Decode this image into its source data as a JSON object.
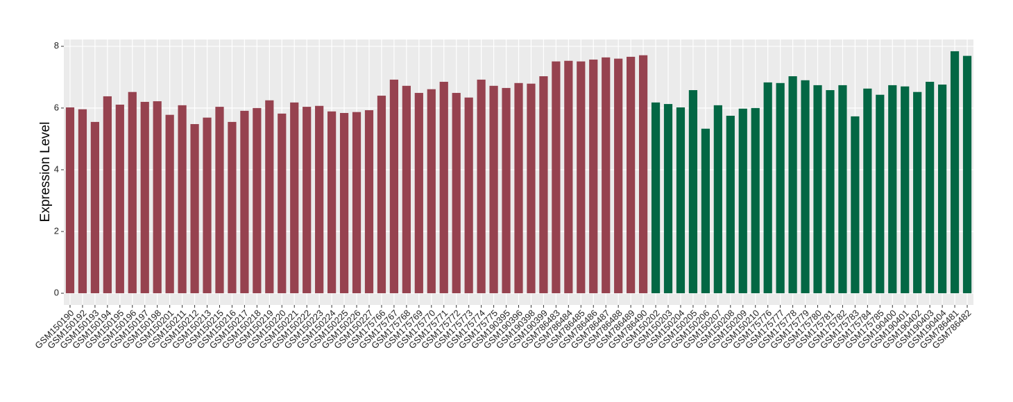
{
  "chart_data": {
    "type": "bar",
    "y_label": "Expression Level",
    "categories": [
      "GSM150190",
      "GSM150192",
      "GSM150193",
      "GSM150194",
      "GSM150195",
      "GSM150196",
      "GSM150197",
      "GSM150198",
      "GSM150201",
      "GSM150211",
      "GSM150212",
      "GSM150213",
      "GSM150215",
      "GSM150216",
      "GSM150217",
      "GSM150218",
      "GSM150219",
      "GSM150220",
      "GSM150221",
      "GSM150222",
      "GSM150223",
      "GSM150224",
      "GSM150225",
      "GSM150226",
      "GSM150227",
      "GSM175766",
      "GSM175767",
      "GSM175768",
      "GSM175769",
      "GSM175770",
      "GSM175771",
      "GSM175772",
      "GSM175773",
      "GSM175774",
      "GSM175775",
      "GSM190395",
      "GSM190396",
      "GSM190398",
      "GSM190399",
      "GSM786483",
      "GSM786484",
      "GSM786485",
      "GSM786486",
      "GSM786487",
      "GSM786488",
      "GSM786489",
      "GSM786490",
      "GSM150202",
      "GSM150203",
      "GSM150204",
      "GSM150205",
      "GSM150206",
      "GSM150207",
      "GSM150208",
      "GSM150209",
      "GSM150210",
      "GSM175776",
      "GSM175777",
      "GSM175778",
      "GSM175779",
      "GSM175780",
      "GSM175781",
      "GSM175782",
      "GSM175783",
      "GSM175784",
      "GSM175785",
      "GSM190400",
      "GSM190401",
      "GSM190402",
      "GSM190403",
      "GSM190404",
      "GSM786481",
      "GSM786482"
    ],
    "values": [
      6.02,
      5.96,
      5.55,
      6.38,
      6.11,
      6.52,
      6.2,
      6.22,
      5.78,
      6.09,
      5.48,
      5.69,
      6.04,
      5.55,
      5.91,
      6.0,
      6.25,
      5.82,
      6.18,
      6.04,
      6.07,
      5.89,
      5.84,
      5.87,
      5.93,
      6.4,
      6.92,
      6.72,
      6.49,
      6.61,
      6.85,
      6.49,
      6.34,
      6.92,
      6.72,
      6.65,
      6.81,
      6.79,
      7.03,
      7.51,
      7.53,
      7.51,
      7.57,
      7.64,
      7.6,
      7.66,
      7.71,
      6.18,
      6.13,
      6.02,
      6.58,
      5.33,
      6.09,
      5.75,
      5.98,
      6.0,
      6.83,
      6.81,
      7.03,
      6.9,
      6.74,
      6.58,
      6.74,
      5.73,
      6.63,
      6.43,
      6.74,
      6.7,
      6.52,
      6.85,
      6.76,
      7.84,
      7.69
    ],
    "colors": [
      "#96424f",
      "#96424f",
      "#96424f",
      "#96424f",
      "#96424f",
      "#96424f",
      "#96424f",
      "#96424f",
      "#96424f",
      "#96424f",
      "#96424f",
      "#96424f",
      "#96424f",
      "#96424f",
      "#96424f",
      "#96424f",
      "#96424f",
      "#96424f",
      "#96424f",
      "#96424f",
      "#96424f",
      "#96424f",
      "#96424f",
      "#96424f",
      "#96424f",
      "#96424f",
      "#96424f",
      "#96424f",
      "#96424f",
      "#96424f",
      "#96424f",
      "#96424f",
      "#96424f",
      "#96424f",
      "#96424f",
      "#96424f",
      "#96424f",
      "#96424f",
      "#96424f",
      "#96424f",
      "#96424f",
      "#96424f",
      "#96424f",
      "#96424f",
      "#96424f",
      "#96424f",
      "#96424f",
      "#036744",
      "#036744",
      "#036744",
      "#036744",
      "#036744",
      "#036744",
      "#036744",
      "#036744",
      "#036744",
      "#036744",
      "#036744",
      "#036744",
      "#036744",
      "#036744",
      "#036744",
      "#036744",
      "#036744",
      "#036744",
      "#036744",
      "#036744",
      "#036744",
      "#036744",
      "#036744",
      "#036744",
      "#036744",
      "#036744"
    ],
    "ylim": [
      -0.38,
      8.22
    ],
    "yticks": [
      0,
      2,
      4,
      6,
      8
    ],
    "grid": true
  }
}
